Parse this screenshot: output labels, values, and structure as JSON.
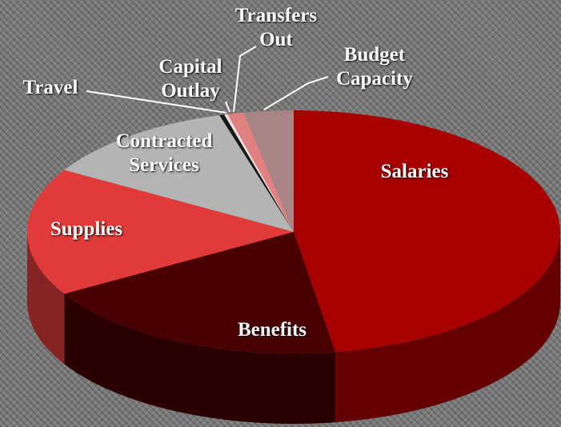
{
  "chart_data": {
    "type": "pie3d",
    "categories": [
      "Salaries",
      "Benefits",
      "Supplies",
      "Contracted Services",
      "Travel",
      "Capital Outlay",
      "Transfers Out",
      "Budget Capacity"
    ],
    "values": [
      47.5,
      19,
      17,
      12,
      0.3,
      0.2,
      1,
      3
    ],
    "colors": [
      "#a80000",
      "#4a0000",
      "#e03a3a",
      "#b4b4b4",
      "#1a1a1a",
      "#f0e0e0",
      "#e08080",
      "#a88484"
    ]
  }
}
